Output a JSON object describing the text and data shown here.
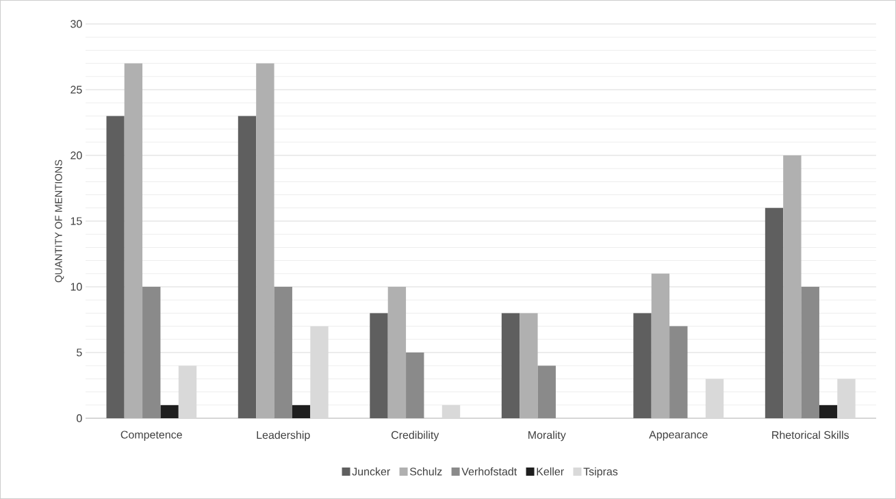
{
  "chart_data": {
    "type": "bar",
    "ylabel": "QUANTITY OF MENTIONS",
    "categories": [
      "Competence",
      "Leadership",
      "Credibility",
      "Morality",
      "Appearance",
      "Rhetorical Skills"
    ],
    "series": [
      {
        "name": "Juncker",
        "color": "#5f5f5f",
        "values": [
          23,
          23,
          8,
          8,
          8,
          16
        ]
      },
      {
        "name": "Schulz",
        "color": "#b0b0b0",
        "values": [
          27,
          27,
          10,
          8,
          11,
          20
        ]
      },
      {
        "name": "Verhofstadt",
        "color": "#8a8a8a",
        "values": [
          10,
          10,
          5,
          4,
          7,
          10
        ]
      },
      {
        "name": "Keller",
        "color": "#1e1e1e",
        "values": [
          1,
          1,
          0,
          0,
          0,
          1
        ]
      },
      {
        "name": "Tsipras",
        "color": "#d9d9d9",
        "values": [
          4,
          7,
          1,
          0,
          3,
          3
        ]
      }
    ],
    "ylim": [
      0,
      30
    ],
    "yticks": [
      0,
      5,
      10,
      15,
      20,
      25,
      30
    ],
    "grid": "y",
    "legend": "bottom"
  }
}
